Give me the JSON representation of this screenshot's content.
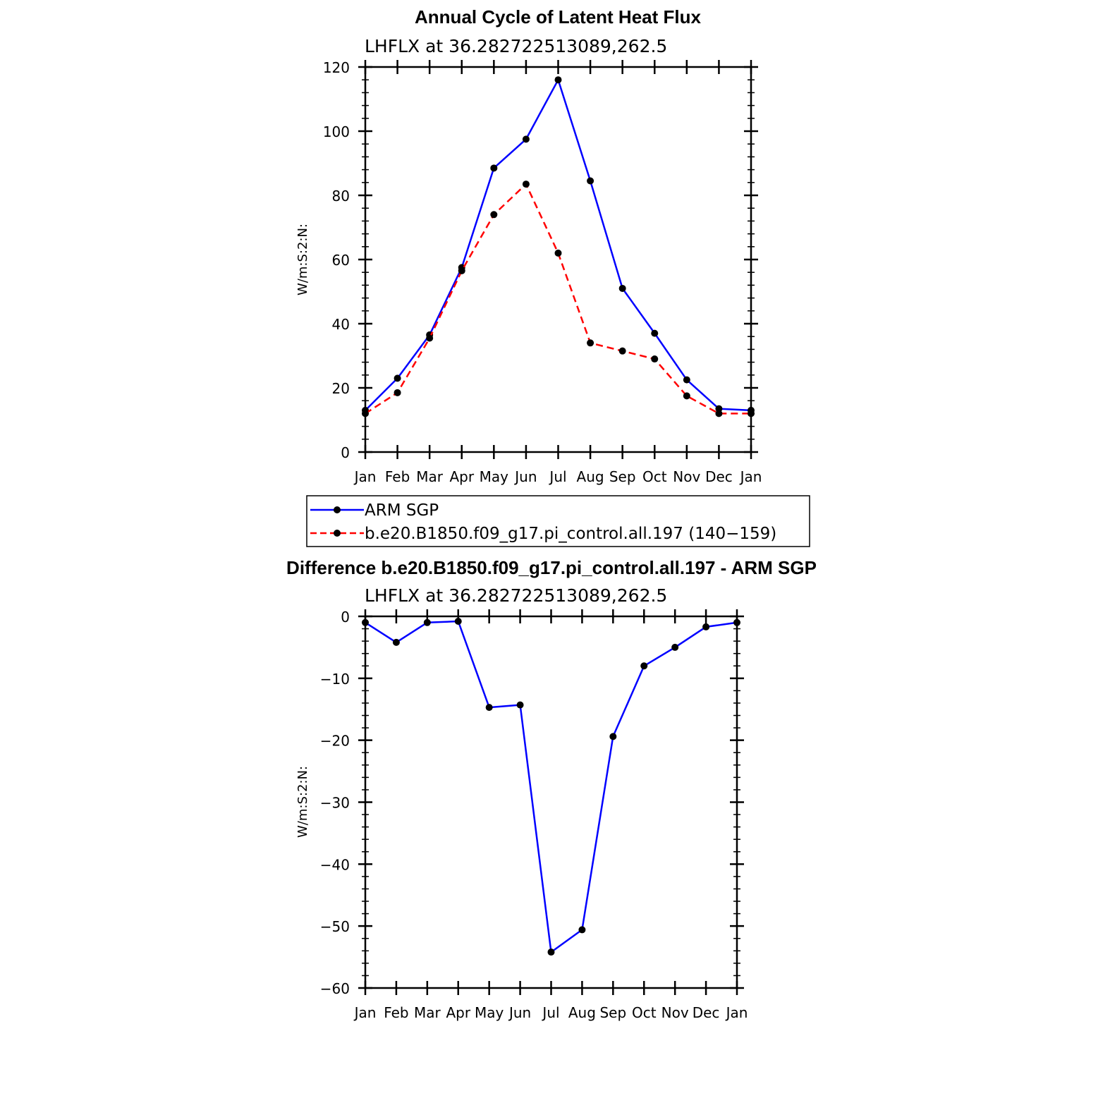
{
  "chart_data": [
    {
      "type": "line",
      "title": "Annual Cycle of Latent Heat Flux",
      "subtitle": "LHFLX at 36.282722513089,262.5",
      "ylabel": "W/m:S:2:N:",
      "xlabel": "",
      "categories": [
        "Jan",
        "Feb",
        "Mar",
        "Apr",
        "May",
        "Jun",
        "Jul",
        "Aug",
        "Sep",
        "Oct",
        "Nov",
        "Dec",
        "Jan"
      ],
      "ylim": [
        0,
        120
      ],
      "yticks": [
        0,
        20,
        40,
        60,
        80,
        100,
        120
      ],
      "grid": false,
      "series": [
        {
          "name": "ARM SGP",
          "color": "#0000ff",
          "style": "solid",
          "values": [
            13,
            23,
            36.5,
            57.5,
            88.5,
            97.5,
            116,
            84.5,
            51,
            37,
            22.5,
            13.5,
            13
          ]
        },
        {
          "name": "b.e20.B1850.f09_g17.pi_control.all.197 (140−159)",
          "color": "#ff0000",
          "style": "dashed",
          "values": [
            12,
            18.5,
            35.5,
            56.5,
            74,
            83.5,
            62,
            34,
            31.5,
            29,
            17.5,
            12,
            12
          ]
        }
      ]
    },
    {
      "type": "line",
      "title": "Difference b.e20.B1850.f09_g17.pi_control.all.197 - ARM SGP",
      "subtitle": "LHFLX at 36.282722513089,262.5",
      "ylabel": "W/m:S:2:N:",
      "xlabel": "",
      "categories": [
        "Jan",
        "Feb",
        "Mar",
        "Apr",
        "May",
        "Jun",
        "Jul",
        "Aug",
        "Sep",
        "Oct",
        "Nov",
        "Dec",
        "Jan"
      ],
      "ylim": [
        -60,
        0
      ],
      "yticks": [
        -60,
        -50,
        -40,
        -30,
        -20,
        -10,
        0
      ],
      "grid": false,
      "series": [
        {
          "color": "#0000ff",
          "style": "solid",
          "values": [
            -1,
            -4.2,
            -1,
            -0.8,
            -14.7,
            -14.3,
            -54.2,
            -50.6,
            -19.4,
            -8,
            -5,
            -1.7,
            -1
          ]
        }
      ]
    }
  ],
  "legend": {
    "items": [
      {
        "label": "ARM SGP",
        "color": "#0000ff",
        "style": "solid"
      },
      {
        "label": "b.e20.B1850.f09_g17.pi_control.all.197 (140−159)",
        "color": "#ff0000",
        "style": "dashed"
      }
    ]
  }
}
